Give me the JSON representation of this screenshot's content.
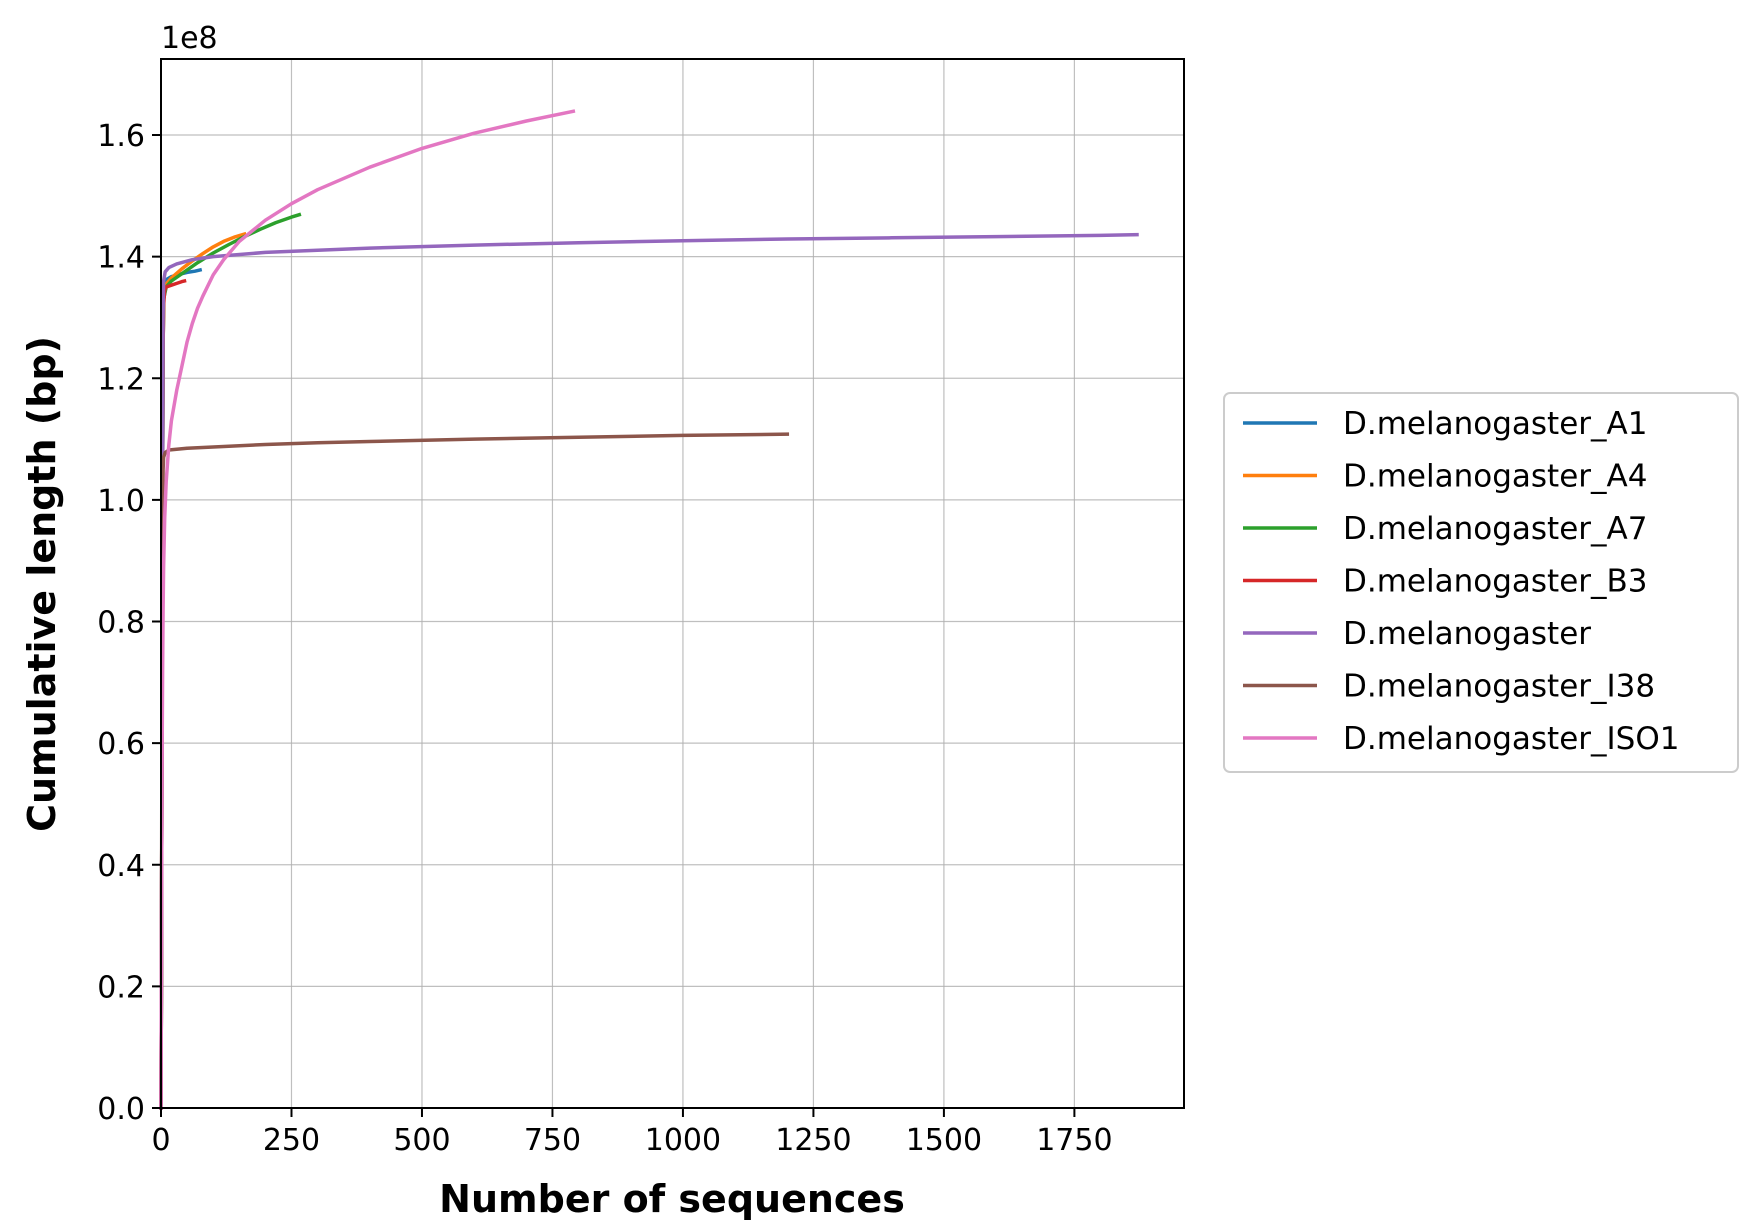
{
  "chart_data": {
    "type": "line",
    "title": "",
    "xlabel": "Number of sequences",
    "ylabel": "Cumulative length (bp)",
    "y_offset_label": "1e8",
    "xlim": [
      0,
      1960
    ],
    "ylim": [
      0,
      1.725
    ],
    "xticks": [
      0,
      250,
      500,
      750,
      1000,
      1250,
      1500,
      1750
    ],
    "xtick_labels": [
      "0",
      "250",
      "500",
      "750",
      "1000",
      "1250",
      "1500",
      "1750"
    ],
    "yticks": [
      0.0,
      0.2,
      0.4,
      0.6,
      0.8,
      1.0,
      1.2,
      1.4,
      1.6
    ],
    "ytick_labels": [
      "0.0",
      "0.2",
      "0.4",
      "0.6",
      "0.8",
      "1.0",
      "1.2",
      "1.4",
      "1.6"
    ],
    "grid": true,
    "legend_position": "outside-right",
    "series": [
      {
        "name": "D.melanogaster_A1",
        "color": "#1f77b4",
        "points": [
          [
            0,
            0
          ],
          [
            1,
            0.25
          ],
          [
            2,
            0.6
          ],
          [
            3,
            1.0
          ],
          [
            4,
            1.25
          ],
          [
            5,
            1.33
          ],
          [
            7,
            1.355
          ],
          [
            10,
            1.362
          ],
          [
            20,
            1.367
          ],
          [
            35,
            1.371
          ],
          [
            50,
            1.374
          ],
          [
            65,
            1.376
          ],
          [
            75,
            1.378
          ]
        ]
      },
      {
        "name": "D.melanogaster_A4",
        "color": "#ff7f0e",
        "points": [
          [
            0,
            0
          ],
          [
            1,
            0.25
          ],
          [
            2,
            0.6
          ],
          [
            3,
            1.0
          ],
          [
            4,
            1.25
          ],
          [
            5,
            1.33
          ],
          [
            10,
            1.355
          ],
          [
            20,
            1.365
          ],
          [
            40,
            1.38
          ],
          [
            60,
            1.393
          ],
          [
            80,
            1.405
          ],
          [
            100,
            1.416
          ],
          [
            120,
            1.425
          ],
          [
            140,
            1.432
          ],
          [
            160,
            1.437
          ]
        ]
      },
      {
        "name": "D.melanogaster_A7",
        "color": "#2ca02c",
        "points": [
          [
            0,
            0
          ],
          [
            1,
            0.25
          ],
          [
            2,
            0.6
          ],
          [
            3,
            1.0
          ],
          [
            4,
            1.25
          ],
          [
            5,
            1.33
          ],
          [
            10,
            1.35
          ],
          [
            20,
            1.36
          ],
          [
            40,
            1.372
          ],
          [
            70,
            1.39
          ],
          [
            100,
            1.406
          ],
          [
            130,
            1.42
          ],
          [
            160,
            1.433
          ],
          [
            190,
            1.445
          ],
          [
            220,
            1.456
          ],
          [
            250,
            1.465
          ],
          [
            265,
            1.469
          ]
        ]
      },
      {
        "name": "D.melanogaster_B3",
        "color": "#d62728",
        "points": [
          [
            0,
            0
          ],
          [
            1,
            0.25
          ],
          [
            2,
            0.6
          ],
          [
            3,
            1.0
          ],
          [
            4,
            1.25
          ],
          [
            5,
            1.32
          ],
          [
            7,
            1.345
          ],
          [
            10,
            1.35
          ],
          [
            20,
            1.353
          ],
          [
            30,
            1.356
          ],
          [
            40,
            1.359
          ],
          [
            45,
            1.36
          ]
        ]
      },
      {
        "name": "D.melanogaster",
        "color": "#9467bd",
        "points": [
          [
            0,
            0
          ],
          [
            1,
            0.25
          ],
          [
            2,
            0.6
          ],
          [
            3,
            1.0
          ],
          [
            4,
            1.3
          ],
          [
            5,
            1.36
          ],
          [
            8,
            1.375
          ],
          [
            15,
            1.382
          ],
          [
            30,
            1.388
          ],
          [
            60,
            1.395
          ],
          [
            100,
            1.4
          ],
          [
            200,
            1.407
          ],
          [
            400,
            1.414
          ],
          [
            600,
            1.419
          ],
          [
            800,
            1.423
          ],
          [
            1000,
            1.426
          ],
          [
            1200,
            1.429
          ],
          [
            1400,
            1.431
          ],
          [
            1600,
            1.433
          ],
          [
            1800,
            1.435
          ],
          [
            1870,
            1.436
          ]
        ]
      },
      {
        "name": "D.melanogaster_I38",
        "color": "#8c564b",
        "points": [
          [
            0,
            0
          ],
          [
            1,
            0.3
          ],
          [
            2,
            0.7
          ],
          [
            3,
            0.95
          ],
          [
            4,
            1.05
          ],
          [
            5,
            1.07
          ],
          [
            8,
            1.078
          ],
          [
            15,
            1.082
          ],
          [
            50,
            1.085
          ],
          [
            100,
            1.087
          ],
          [
            200,
            1.091
          ],
          [
            300,
            1.094
          ],
          [
            400,
            1.096
          ],
          [
            600,
            1.1
          ],
          [
            800,
            1.103
          ],
          [
            1000,
            1.106
          ],
          [
            1200,
            1.108
          ]
        ]
      },
      {
        "name": "D.melanogaster_ISO1",
        "color": "#e377c2",
        "points": [
          [
            0,
            0
          ],
          [
            1,
            0.3
          ],
          [
            2,
            0.55
          ],
          [
            3,
            0.72
          ],
          [
            4,
            0.82
          ],
          [
            5,
            0.89
          ],
          [
            7,
            0.97
          ],
          [
            10,
            1.03
          ],
          [
            15,
            1.09
          ],
          [
            20,
            1.13
          ],
          [
            30,
            1.18
          ],
          [
            40,
            1.22
          ],
          [
            50,
            1.26
          ],
          [
            60,
            1.29
          ],
          [
            70,
            1.315
          ],
          [
            80,
            1.335
          ],
          [
            100,
            1.37
          ],
          [
            120,
            1.395
          ],
          [
            150,
            1.425
          ],
          [
            200,
            1.46
          ],
          [
            250,
            1.487
          ],
          [
            300,
            1.51
          ],
          [
            400,
            1.547
          ],
          [
            500,
            1.578
          ],
          [
            600,
            1.603
          ],
          [
            700,
            1.623
          ],
          [
            790,
            1.639
          ]
        ]
      }
    ]
  }
}
